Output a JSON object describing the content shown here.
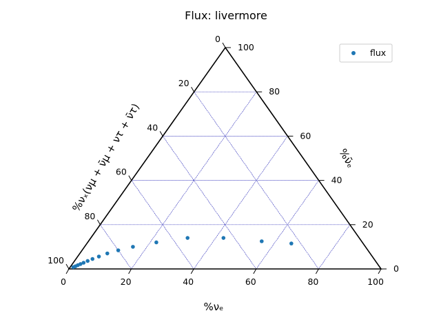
{
  "chart_data": {
    "type": "scatter",
    "title": "Flux: livermore",
    "xlabel": "%νₑ",
    "right_label": "%ν̄ₑ",
    "left_label": "%νₓ(νμ + ν̄μ + ντ + ν̄τ)",
    "axis_range": [
      0,
      100
    ],
    "ticks": [
      "0",
      "20",
      "40",
      "60",
      "80",
      "100"
    ],
    "grid": true,
    "legend_position": "top-right",
    "series": [
      {
        "name": "flux",
        "color": "#1f77b4",
        "points": [
          {
            "nue": 1.0,
            "nuebar": 0.8,
            "nux": 98.2
          },
          {
            "nue": 1.5,
            "nuebar": 1.2,
            "nux": 97.3
          },
          {
            "nue": 2.0,
            "nuebar": 1.7,
            "nux": 96.3
          },
          {
            "nue": 2.6,
            "nuebar": 2.2,
            "nux": 95.2
          },
          {
            "nue": 3.3,
            "nuebar": 2.8,
            "nux": 93.9
          },
          {
            "nue": 4.2,
            "nuebar": 3.6,
            "nux": 92.2
          },
          {
            "nue": 5.3,
            "nuebar": 4.5,
            "nux": 90.2
          },
          {
            "nue": 6.8,
            "nuebar": 5.6,
            "nux": 87.6
          },
          {
            "nue": 8.8,
            "nuebar": 7.0,
            "nux": 84.2
          },
          {
            "nue": 11.6,
            "nuebar": 8.4,
            "nux": 80.0
          },
          {
            "nue": 15.5,
            "nuebar": 10.0,
            "nux": 74.5
          },
          {
            "nue": 22.0,
            "nuebar": 12.0,
            "nux": 66.0
          },
          {
            "nue": 31.0,
            "nuebar": 14.0,
            "nux": 55.0
          },
          {
            "nue": 42.5,
            "nuebar": 14.0,
            "nux": 43.5
          },
          {
            "nue": 55.5,
            "nuebar": 12.5,
            "nux": 32.0
          },
          {
            "nue": 65.5,
            "nuebar": 11.5,
            "nux": 23.0
          }
        ]
      }
    ]
  }
}
